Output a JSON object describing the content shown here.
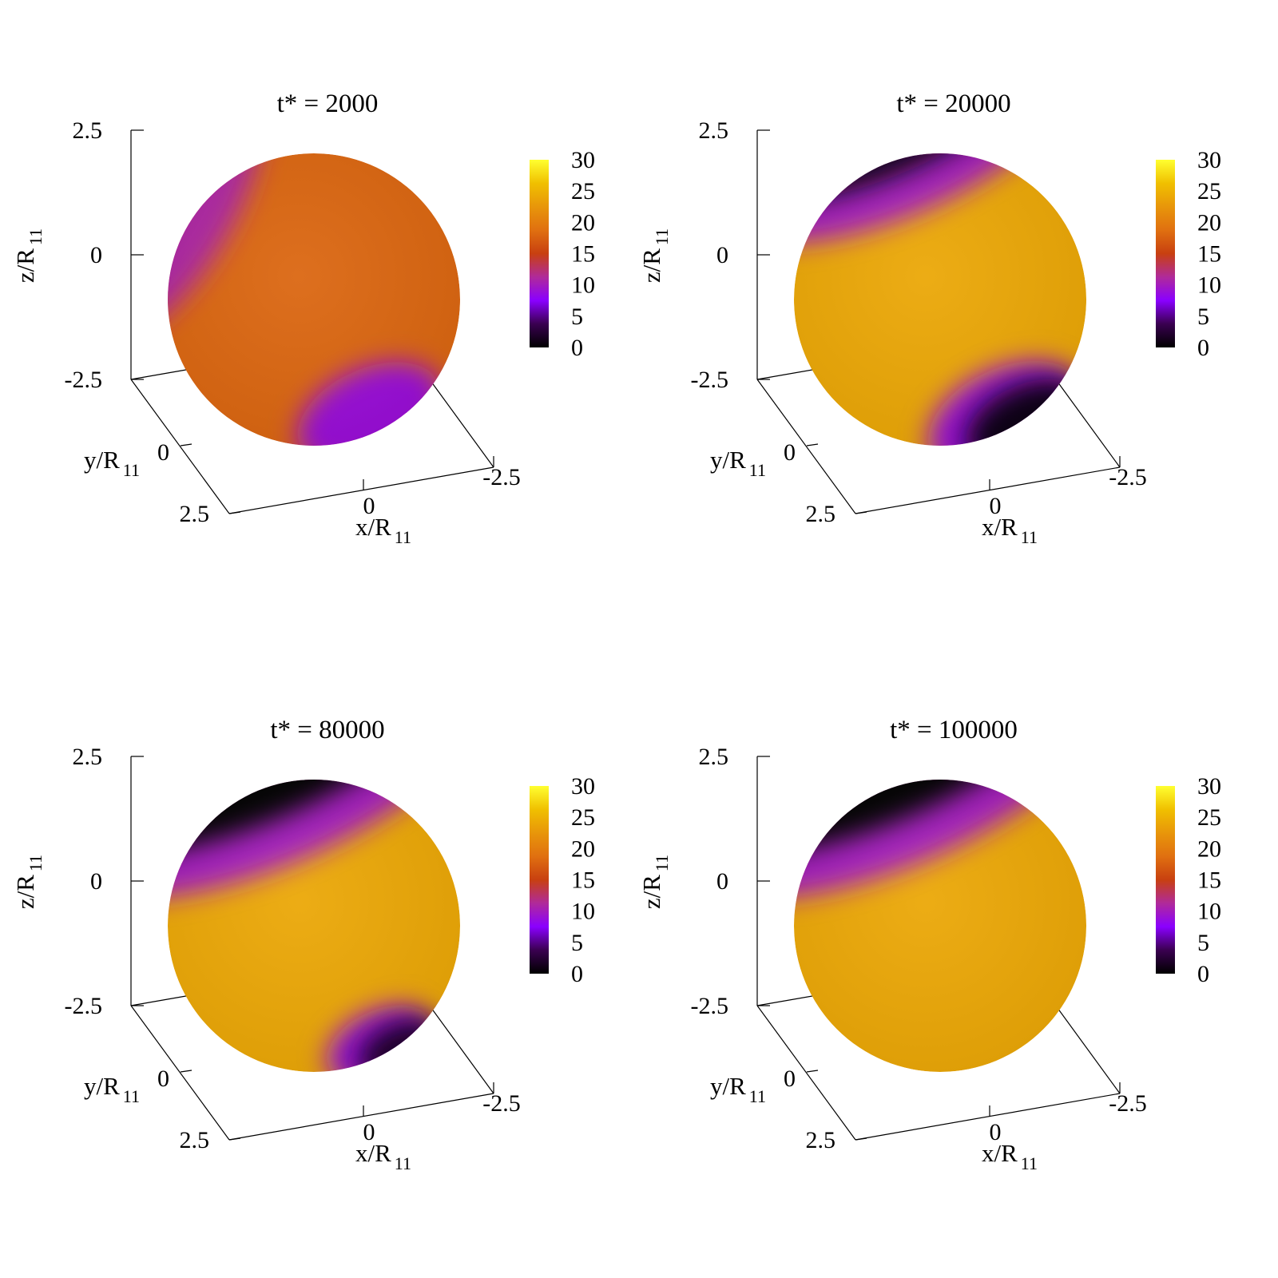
{
  "chart_data": [
    {
      "type": "surface3d-sphere",
      "title": "t* = 2000",
      "xlabel": "x/R",
      "ylabel": "y/R",
      "zlabel": "z/R",
      "label_subscript": "11",
      "xrange": [
        -2.5,
        2.5
      ],
      "yrange": [
        -2.5,
        2.5
      ],
      "zrange": [
        -2.5,
        2.5
      ],
      "x_ticks": [
        "0",
        "-2.5"
      ],
      "y_ticks": [
        "0",
        "2.5"
      ],
      "z_ticks": [
        "2.5",
        "0",
        "-2.5"
      ],
      "colorbar": {
        "range": [
          0,
          30
        ],
        "ticks": [
          "30",
          "25",
          "20",
          "15",
          "10",
          "5",
          "0"
        ]
      },
      "base_value": 18,
      "regions": [
        {
          "name": "north-band",
          "value": 11,
          "extent": "narrow"
        },
        {
          "name": "south-patch",
          "value": 9,
          "extent": "medium"
        }
      ]
    },
    {
      "type": "surface3d-sphere",
      "title": "t* = 20000",
      "xlabel": "x/R",
      "ylabel": "y/R",
      "zlabel": "z/R",
      "label_subscript": "11",
      "xrange": [
        -2.5,
        2.5
      ],
      "yrange": [
        -2.5,
        2.5
      ],
      "zrange": [
        -2.5,
        2.5
      ],
      "x_ticks": [
        "0",
        "-2.5"
      ],
      "y_ticks": [
        "0",
        "2.5"
      ],
      "z_ticks": [
        "2.5",
        "0",
        "-2.5"
      ],
      "colorbar": {
        "range": [
          0,
          30
        ],
        "ticks": [
          "30",
          "25",
          "20",
          "15",
          "10",
          "5",
          "0"
        ]
      },
      "base_value": 24,
      "regions": [
        {
          "name": "north-cap",
          "value": 1,
          "extent": "medium"
        },
        {
          "name": "south-cap",
          "value": 1,
          "extent": "medium"
        }
      ]
    },
    {
      "type": "surface3d-sphere",
      "title": "t* = 80000",
      "xlabel": "x/R",
      "ylabel": "y/R",
      "zlabel": "z/R",
      "label_subscript": "11",
      "xrange": [
        -2.5,
        2.5
      ],
      "yrange": [
        -2.5,
        2.5
      ],
      "zrange": [
        -2.5,
        2.5
      ],
      "x_ticks": [
        "0",
        "-2.5"
      ],
      "y_ticks": [
        "0",
        "2.5"
      ],
      "z_ticks": [
        "2.5",
        "0",
        "-2.5"
      ],
      "colorbar": {
        "range": [
          0,
          30
        ],
        "ticks": [
          "30",
          "25",
          "20",
          "15",
          "10",
          "5",
          "0"
        ]
      },
      "base_value": 24,
      "regions": [
        {
          "name": "north-cap",
          "value": 0,
          "extent": "large"
        },
        {
          "name": "south-cap",
          "value": 2,
          "extent": "small"
        }
      ]
    },
    {
      "type": "surface3d-sphere",
      "title": "t* = 100000",
      "xlabel": "x/R",
      "ylabel": "y/R",
      "zlabel": "z/R",
      "label_subscript": "11",
      "xrange": [
        -2.5,
        2.5
      ],
      "yrange": [
        -2.5,
        2.5
      ],
      "zrange": [
        -2.5,
        2.5
      ],
      "x_ticks": [
        "0",
        "-2.5"
      ],
      "y_ticks": [
        "0",
        "2.5"
      ],
      "z_ticks": [
        "2.5",
        "0",
        "-2.5"
      ],
      "colorbar": {
        "range": [
          0,
          30
        ],
        "ticks": [
          "30",
          "25",
          "20",
          "15",
          "10",
          "5",
          "0"
        ]
      },
      "base_value": 24,
      "regions": [
        {
          "name": "north-cap",
          "value": 0,
          "extent": "large"
        }
      ]
    }
  ],
  "palette": {
    "stops": [
      "#000000",
      "#3a0050",
      "#8a00ff",
      "#b02a9a",
      "#c84010",
      "#e07010",
      "#e8960a",
      "#f0c000",
      "#ffff30"
    ]
  }
}
